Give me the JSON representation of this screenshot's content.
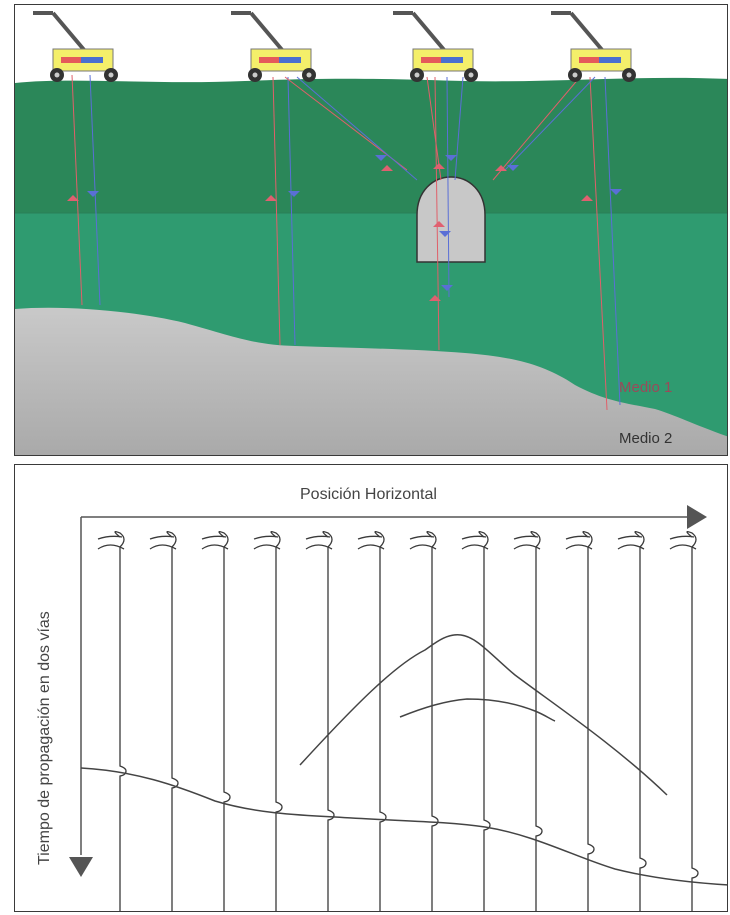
{
  "top_panel": {
    "medium1_label": "Medio 1",
    "medium2_label": "Medio 2",
    "colors": {
      "sky": "#ffffff",
      "medium1_upper": "#2c8a5c",
      "medium1_lower": "#2f9a70",
      "medium2": "#b9b9b9",
      "cavity": "#c9c9c9",
      "ray_red": "#e0606a",
      "ray_blue": "#5a6fd6",
      "device_body": "#f4ef6a"
    },
    "devices": 4
  },
  "bottom_panel": {
    "x_axis_label": "Posición Horizontal",
    "y_axis_label": "Tiempo de propagación en dos vías",
    "traces": 12
  }
}
